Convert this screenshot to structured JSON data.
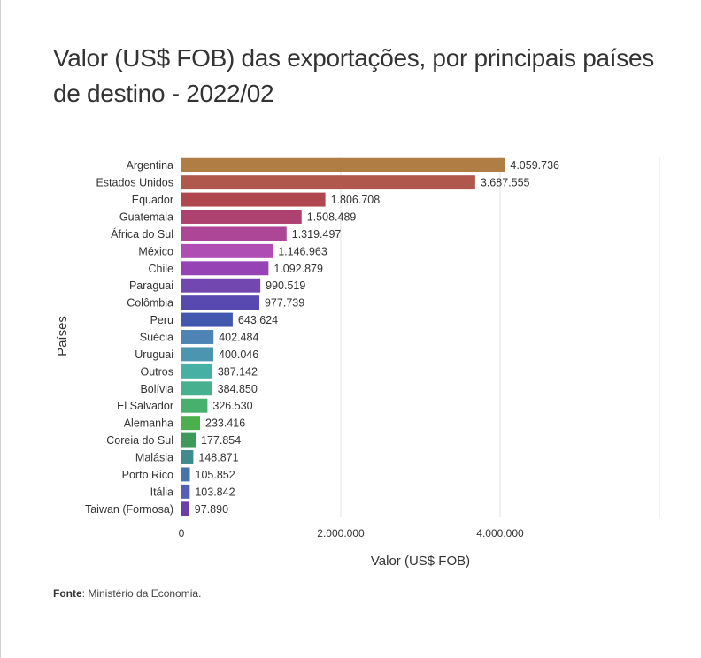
{
  "title": "Valor (US$ FOB) das exportações, por principais países de destino - 2022/02",
  "source": {
    "label": "Fonte",
    "text": ": Ministério da Economia."
  },
  "chart_data": {
    "type": "bar",
    "orientation": "horizontal",
    "title": "Valor (US$ FOB) das exportações, por principais países de destino - 2022/02",
    "xlabel": "Valor (US$ FOB)",
    "ylabel": "Países",
    "xlim": [
      0,
      6000000
    ],
    "xticks": [
      0,
      2000000,
      4000000
    ],
    "xtick_labels": [
      "0",
      "2.000.000",
      "4.000.000"
    ],
    "grid": true,
    "categories": [
      "Argentina",
      "Estados Unidos",
      "Equador",
      "Guatemala",
      "África do Sul",
      "México",
      "Chile",
      "Paraguai",
      "Colômbia",
      "Peru",
      "Suécia",
      "Uruguai",
      "Outros",
      "Bolívia",
      "El Salvador",
      "Alemanha",
      "Coreia do Sul",
      "Malásia",
      "Porto Rico",
      "Itália",
      "Taiwan (Formosa)"
    ],
    "values": [
      4059736,
      3687555,
      1806708,
      1508489,
      1319497,
      1146963,
      1092879,
      990519,
      977739,
      643624,
      402484,
      400046,
      387142,
      384850,
      326530,
      233416,
      177854,
      148871,
      105852,
      103842,
      97890
    ],
    "value_labels": [
      "4.059.736",
      "3.687.555",
      "1.806.708",
      "1.508.489",
      "1.319.497",
      "1.146.963",
      "1.092.879",
      "990.519",
      "977.739",
      "643.624",
      "402.484",
      "400.046",
      "387.142",
      "384.850",
      "326.530",
      "233.416",
      "177.854",
      "148.871",
      "105.852",
      "103.842",
      "97.890"
    ],
    "colors": [
      "#b07d45",
      "#b0584c",
      "#b0474f",
      "#ad4270",
      "#ad4696",
      "#b04db4",
      "#9644b5",
      "#7347b0",
      "#5849b0",
      "#4257ae",
      "#4d83b5",
      "#4b95b0",
      "#46b0a5",
      "#46b08f",
      "#46b06c",
      "#4bb04c",
      "#3f9a5a",
      "#3f8a8e",
      "#4574ab",
      "#5561b5",
      "#6a40a8"
    ]
  }
}
